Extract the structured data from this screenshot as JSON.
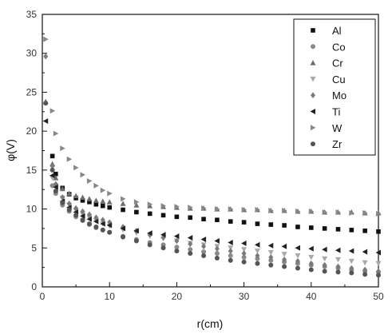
{
  "chart_data": {
    "type": "scatter",
    "title": "",
    "xlabel": "r(cm)",
    "ylabel": "φ(V)",
    "xlim": [
      0,
      50
    ],
    "ylim": [
      0,
      35
    ],
    "xticks": [
      0,
      10,
      20,
      30,
      40,
      50
    ],
    "yticks": [
      0,
      5,
      10,
      15,
      20,
      25,
      30,
      35
    ],
    "grid": false,
    "legend_position": "top-right",
    "series": [
      {
        "name": "Al",
        "marker": "square",
        "color": "#111111",
        "x": [
          1.5,
          2,
          3,
          4,
          5,
          6,
          7,
          8,
          9,
          10,
          12,
          14,
          16,
          18,
          20,
          22,
          24,
          26,
          28,
          30,
          32,
          34,
          36,
          38,
          40,
          42,
          44,
          46,
          48,
          50
        ],
        "y": [
          16.8,
          14.5,
          12.7,
          11.9,
          11.4,
          11.1,
          10.9,
          10.6,
          10.4,
          10.2,
          9.9,
          9.6,
          9.4,
          9.2,
          9.0,
          8.9,
          8.7,
          8.6,
          8.4,
          8.3,
          8.1,
          8.0,
          7.9,
          7.7,
          7.6,
          7.5,
          7.4,
          7.3,
          7.2,
          7.1
        ]
      },
      {
        "name": "Co",
        "marker": "circle",
        "color": "#8a8a8a",
        "x": [
          1.5,
          2,
          3,
          4,
          5,
          6,
          7,
          8,
          9,
          10,
          12,
          14,
          16,
          18,
          20,
          22,
          24,
          26,
          28,
          30,
          32,
          34,
          36,
          38,
          40,
          42,
          44,
          46,
          48,
          50
        ],
        "y": [
          13.0,
          12.0,
          10.5,
          9.7,
          9.0,
          8.5,
          8.0,
          7.6,
          7.3,
          7.0,
          6.5,
          6.1,
          5.7,
          5.4,
          5.1,
          4.8,
          4.5,
          4.3,
          4.0,
          3.8,
          3.6,
          3.4,
          3.2,
          3.0,
          2.8,
          2.6,
          2.4,
          2.2,
          2.0,
          1.9
        ]
      },
      {
        "name": "Cr",
        "marker": "triangle-up",
        "color": "#6e6e6e",
        "x": [
          0.5,
          1.5,
          2,
          3,
          4,
          5,
          6,
          7,
          8,
          9,
          10,
          12,
          14,
          16,
          18,
          20,
          22,
          24,
          26,
          28,
          30,
          32,
          34,
          36,
          38,
          40,
          42,
          44,
          46,
          48,
          50
        ],
        "y": [
          23.8,
          15.8,
          14.0,
          12.6,
          12.0,
          11.7,
          11.5,
          11.3,
          11.1,
          11.0,
          10.9,
          10.7,
          10.5,
          10.4,
          10.3,
          10.2,
          10.1,
          10.1,
          10.0,
          10.0,
          9.9,
          9.9,
          9.8,
          9.8,
          9.7,
          9.7,
          9.6,
          9.6,
          9.6,
          9.5,
          9.5
        ]
      },
      {
        "name": "Cu",
        "marker": "triangle-down",
        "color": "#a8a8a8",
        "x": [
          1.5,
          2,
          3,
          4,
          5,
          6,
          7,
          8,
          9,
          10,
          12,
          14,
          16,
          18,
          20,
          22,
          24,
          26,
          28,
          30,
          32,
          34,
          36,
          38,
          40,
          42,
          44,
          46,
          48,
          50
        ],
        "y": [
          14.0,
          13.0,
          11.4,
          10.5,
          9.8,
          9.3,
          8.9,
          8.5,
          8.1,
          7.8,
          7.3,
          6.9,
          6.5,
          6.2,
          5.9,
          5.6,
          5.4,
          5.2,
          5.0,
          4.8,
          4.6,
          4.4,
          4.2,
          4.0,
          3.8,
          3.6,
          3.5,
          3.3,
          3.1,
          3.0
        ]
      },
      {
        "name": "Mo",
        "marker": "diamond",
        "color": "#7a7a7a",
        "x": [
          0.5,
          1.5,
          2,
          3,
          4,
          5,
          6,
          7,
          8,
          9,
          10,
          12,
          14,
          16,
          18,
          20,
          22,
          24,
          26,
          28,
          30,
          32,
          34,
          36,
          38,
          40,
          42,
          44,
          46,
          48,
          50
        ],
        "y": [
          29.6,
          15.5,
          13.2,
          11.5,
          10.7,
          10.1,
          9.7,
          9.3,
          8.9,
          8.6,
          8.3,
          7.7,
          7.2,
          6.7,
          6.3,
          5.9,
          5.5,
          5.2,
          4.9,
          4.6,
          4.3,
          4.0,
          3.8,
          3.5,
          3.3,
          3.0,
          2.8,
          2.6,
          2.4,
          2.2,
          2.0
        ]
      },
      {
        "name": "Ti",
        "marker": "triangle-left",
        "color": "#222222",
        "x": [
          0.5,
          1.5,
          2,
          3,
          4,
          5,
          6,
          7,
          8,
          9,
          10,
          12,
          14,
          16,
          18,
          20,
          22,
          24,
          26,
          28,
          30,
          32,
          34,
          36,
          38,
          40,
          42,
          44,
          46,
          48,
          50
        ],
        "y": [
          21.3,
          14.3,
          12.8,
          11.0,
          10.2,
          9.6,
          9.1,
          8.7,
          8.4,
          8.1,
          7.9,
          7.5,
          7.2,
          6.9,
          6.7,
          6.5,
          6.3,
          6.1,
          5.9,
          5.7,
          5.6,
          5.4,
          5.3,
          5.2,
          5.0,
          4.9,
          4.8,
          4.7,
          4.6,
          4.5,
          4.4
        ]
      },
      {
        "name": "W",
        "marker": "triangle-right",
        "color": "#888888",
        "x": [
          0.5,
          1.5,
          2,
          3,
          4,
          5,
          6,
          7,
          8,
          9,
          10,
          12,
          14,
          16,
          18,
          20,
          22,
          24,
          26,
          28,
          30,
          32,
          34,
          36,
          38,
          40,
          42,
          44,
          46,
          48,
          50
        ],
        "y": [
          31.8,
          22.6,
          19.7,
          17.8,
          16.4,
          15.3,
          14.4,
          13.6,
          13.0,
          12.4,
          12.0,
          11.3,
          10.9,
          10.6,
          10.4,
          10.3,
          10.2,
          10.1,
          10.0,
          10.0,
          9.9,
          9.9,
          9.8,
          9.8,
          9.7,
          9.7,
          9.6,
          9.6,
          9.5,
          9.5,
          9.4
        ]
      },
      {
        "name": "Zr",
        "marker": "circle",
        "color": "#555555",
        "x": [
          0.5,
          1.5,
          2,
          3,
          4,
          5,
          6,
          7,
          8,
          9,
          10,
          12,
          14,
          16,
          18,
          20,
          22,
          24,
          26,
          28,
          30,
          32,
          34,
          36,
          38,
          40,
          42,
          44,
          46,
          48,
          50
        ],
        "y": [
          23.6,
          15.0,
          12.3,
          10.8,
          9.9,
          9.2,
          8.6,
          8.1,
          7.7,
          7.3,
          7.0,
          6.4,
          5.9,
          5.4,
          5.0,
          4.6,
          4.3,
          4.0,
          3.7,
          3.4,
          3.2,
          3.0,
          2.8,
          2.6,
          2.4,
          2.2,
          2.0,
          1.9,
          1.8,
          1.6,
          1.5
        ]
      }
    ]
  }
}
